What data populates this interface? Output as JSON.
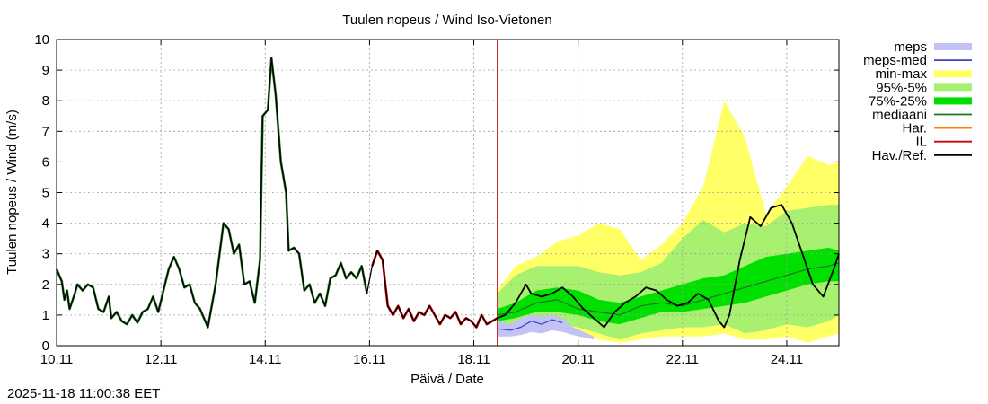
{
  "chart_data": {
    "type": "area",
    "title": "Tuulen nopeus / Wind  Iso-Vietonen",
    "xlabel": "Päivä / Date",
    "ylabel": "Tuulen nopeus / Wind (m/s)",
    "ylim": [
      0,
      10
    ],
    "xlim": [
      0,
      15
    ],
    "x_unit": "days since 10.11 00:00",
    "y_ticks": [
      0,
      1,
      2,
      3,
      4,
      5,
      6,
      7,
      8,
      9,
      10
    ],
    "x_ticks": [
      {
        "x": 0,
        "label": "10.11"
      },
      {
        "x": 2,
        "label": "12.11"
      },
      {
        "x": 4,
        "label": "14.11"
      },
      {
        "x": 6,
        "label": "16.11"
      },
      {
        "x": 8,
        "label": "18.11"
      },
      {
        "x": 10,
        "label": "20.11"
      },
      {
        "x": 12,
        "label": "22.11"
      },
      {
        "x": 14,
        "label": "24.11"
      }
    ],
    "grid": true,
    "now_line_x": 8.45,
    "legend": [
      {
        "key": "meps",
        "label": "meps",
        "style": "band",
        "color": "#c2c2f5"
      },
      {
        "key": "meps_med",
        "label": "meps-med",
        "style": "line",
        "color": "#4040c0"
      },
      {
        "key": "minmax",
        "label": "min-max",
        "style": "band",
        "color": "#ffff66"
      },
      {
        "key": "p95_5",
        "label": "95%-5%",
        "style": "band",
        "color": "#a8f070"
      },
      {
        "key": "p75_25",
        "label": "75%-25%",
        "style": "band",
        "color": "#00e000"
      },
      {
        "key": "median",
        "label": "mediaani",
        "style": "line",
        "color": "#207020"
      },
      {
        "key": "har",
        "label": "Har.",
        "style": "line",
        "color": "#ff8000"
      },
      {
        "key": "il",
        "label": "IL",
        "style": "line",
        "color": "#d00000"
      },
      {
        "key": "obs",
        "label": "Hav./Ref.",
        "style": "line",
        "color": "#000000"
      }
    ],
    "series": {
      "observed": [
        [
          0,
          2.5
        ],
        [
          0.1,
          2.1
        ],
        [
          0.15,
          1.5
        ],
        [
          0.2,
          1.8
        ],
        [
          0.25,
          1.2
        ],
        [
          0.35,
          1.7
        ],
        [
          0.4,
          2.0
        ],
        [
          0.5,
          1.8
        ],
        [
          0.6,
          2.0
        ],
        [
          0.7,
          1.9
        ],
        [
          0.8,
          1.2
        ],
        [
          0.9,
          1.1
        ],
        [
          1.0,
          1.6
        ],
        [
          1.05,
          0.9
        ],
        [
          1.15,
          1.1
        ],
        [
          1.25,
          0.8
        ],
        [
          1.35,
          0.7
        ],
        [
          1.45,
          1.0
        ],
        [
          1.55,
          0.75
        ],
        [
          1.65,
          1.1
        ],
        [
          1.75,
          1.2
        ],
        [
          1.85,
          1.6
        ],
        [
          1.95,
          1.1
        ],
        [
          2.05,
          1.8
        ],
        [
          2.15,
          2.5
        ],
        [
          2.25,
          2.9
        ],
        [
          2.35,
          2.5
        ],
        [
          2.45,
          1.9
        ],
        [
          2.55,
          2.0
        ],
        [
          2.65,
          1.4
        ],
        [
          2.75,
          1.2
        ],
        [
          2.9,
          0.6
        ],
        [
          3.05,
          2.0
        ],
        [
          3.2,
          4.0
        ],
        [
          3.3,
          3.8
        ],
        [
          3.4,
          3.0
        ],
        [
          3.5,
          3.3
        ],
        [
          3.6,
          2.0
        ],
        [
          3.7,
          2.1
        ],
        [
          3.8,
          1.4
        ],
        [
          3.9,
          2.8
        ],
        [
          3.95,
          7.5
        ],
        [
          4.05,
          7.7
        ],
        [
          4.12,
          9.4
        ],
        [
          4.2,
          8.2
        ],
        [
          4.3,
          6.0
        ],
        [
          4.4,
          5.0
        ],
        [
          4.45,
          3.1
        ],
        [
          4.55,
          3.2
        ],
        [
          4.65,
          3.0
        ],
        [
          4.75,
          1.8
        ],
        [
          4.85,
          2.0
        ],
        [
          4.95,
          1.4
        ],
        [
          5.05,
          1.7
        ],
        [
          5.15,
          1.3
        ],
        [
          5.25,
          2.2
        ],
        [
          5.35,
          2.3
        ],
        [
          5.45,
          2.7
        ],
        [
          5.55,
          2.2
        ],
        [
          5.65,
          2.4
        ],
        [
          5.75,
          2.2
        ],
        [
          5.85,
          2.6
        ],
        [
          5.95,
          1.7
        ],
        [
          6.05,
          2.6
        ],
        [
          6.15,
          3.1
        ],
        [
          6.25,
          2.8
        ],
        [
          6.35,
          1.3
        ],
        [
          6.45,
          1.0
        ],
        [
          6.55,
          1.3
        ],
        [
          6.65,
          0.9
        ],
        [
          6.75,
          1.2
        ],
        [
          6.85,
          0.8
        ],
        [
          6.95,
          1.1
        ],
        [
          7.05,
          1.0
        ],
        [
          7.15,
          1.3
        ],
        [
          7.25,
          1.0
        ],
        [
          7.35,
          0.7
        ],
        [
          7.45,
          1.0
        ],
        [
          7.55,
          0.9
        ],
        [
          7.65,
          1.1
        ],
        [
          7.75,
          0.7
        ],
        [
          7.85,
          0.9
        ],
        [
          7.95,
          0.8
        ],
        [
          8.05,
          0.6
        ],
        [
          8.15,
          1.0
        ],
        [
          8.25,
          0.7
        ],
        [
          8.35,
          0.8
        ],
        [
          8.45,
          0.9
        ]
      ],
      "forecast": [
        [
          8.45,
          0.9
        ],
        [
          8.6,
          1.0
        ],
        [
          8.8,
          1.4
        ],
        [
          9.0,
          2.0
        ],
        [
          9.1,
          1.7
        ],
        [
          9.3,
          1.6
        ],
        [
          9.5,
          1.7
        ],
        [
          9.7,
          1.9
        ],
        [
          9.9,
          1.6
        ],
        [
          10.1,
          1.2
        ],
        [
          10.3,
          0.9
        ],
        [
          10.5,
          0.6
        ],
        [
          10.7,
          1.1
        ],
        [
          10.9,
          1.4
        ],
        [
          11.1,
          1.6
        ],
        [
          11.3,
          1.9
        ],
        [
          11.5,
          1.8
        ],
        [
          11.7,
          1.5
        ],
        [
          11.9,
          1.3
        ],
        [
          12.1,
          1.4
        ],
        [
          12.3,
          1.7
        ],
        [
          12.5,
          1.5
        ],
        [
          12.7,
          0.8
        ],
        [
          12.8,
          0.6
        ],
        [
          12.9,
          1.0
        ],
        [
          13.1,
          2.8
        ],
        [
          13.3,
          4.2
        ],
        [
          13.5,
          3.9
        ],
        [
          13.7,
          4.5
        ],
        [
          13.9,
          4.6
        ],
        [
          14.1,
          4.0
        ],
        [
          14.3,
          3.0
        ],
        [
          14.5,
          2.0
        ],
        [
          14.7,
          1.6
        ],
        [
          14.9,
          2.5
        ],
        [
          15.0,
          3.0
        ]
      ],
      "median": [
        [
          8.45,
          1.0
        ],
        [
          8.8,
          1.1
        ],
        [
          9.2,
          1.4
        ],
        [
          9.6,
          1.5
        ],
        [
          10.0,
          1.2
        ],
        [
          10.4,
          1.1
        ],
        [
          10.8,
          1.0
        ],
        [
          11.2,
          1.3
        ],
        [
          11.6,
          1.4
        ],
        [
          12.0,
          1.3
        ],
        [
          12.4,
          1.5
        ],
        [
          12.8,
          1.7
        ],
        [
          13.2,
          1.9
        ],
        [
          13.6,
          2.1
        ],
        [
          14.0,
          2.3
        ],
        [
          14.4,
          2.5
        ],
        [
          14.8,
          2.6
        ],
        [
          15.0,
          2.7
        ]
      ],
      "meps_med": [
        [
          8.45,
          0.55
        ],
        [
          8.7,
          0.5
        ],
        [
          8.9,
          0.6
        ],
        [
          9.1,
          0.8
        ],
        [
          9.3,
          0.7
        ],
        [
          9.5,
          0.85
        ],
        [
          9.7,
          0.75
        ]
      ],
      "band_minmax": {
        "x": [
          8.45,
          8.8,
          9.2,
          9.6,
          10.0,
          10.4,
          10.8,
          11.2,
          11.6,
          12.0,
          12.4,
          12.8,
          13.2,
          13.6,
          14.0,
          14.4,
          14.8,
          15.0
        ],
        "low": [
          0.5,
          0.6,
          0.5,
          0.5,
          0.4,
          0.2,
          0.1,
          0.2,
          0.3,
          0.3,
          0.3,
          0.4,
          0.2,
          0.2,
          0.3,
          0.1,
          0.3,
          0.4
        ],
        "high": [
          1.8,
          2.6,
          2.9,
          3.4,
          3.6,
          4.0,
          3.8,
          2.8,
          3.3,
          4.0,
          5.2,
          8.0,
          6.8,
          4.3,
          5.2,
          6.2,
          5.9,
          6.0
        ]
      },
      "band_95_5": {
        "x": [
          8.45,
          8.8,
          9.2,
          9.6,
          10.0,
          10.4,
          10.8,
          11.2,
          11.6,
          12.0,
          12.4,
          12.8,
          13.2,
          13.6,
          14.0,
          14.4,
          14.8,
          15.0
        ],
        "low": [
          0.6,
          0.7,
          0.7,
          0.7,
          0.6,
          0.4,
          0.2,
          0.4,
          0.5,
          0.6,
          0.6,
          0.7,
          0.4,
          0.5,
          0.7,
          0.6,
          0.8,
          1.0
        ],
        "high": [
          1.7,
          2.3,
          2.6,
          2.6,
          2.6,
          2.4,
          2.3,
          2.4,
          2.7,
          3.5,
          4.1,
          3.7,
          4.0,
          3.9,
          4.4,
          4.5,
          4.6,
          4.6
        ]
      },
      "band_75_25": {
        "x": [
          8.45,
          8.8,
          9.2,
          9.6,
          10.0,
          10.4,
          10.8,
          11.2,
          11.6,
          12.0,
          12.4,
          12.8,
          13.2,
          13.6,
          14.0,
          14.4,
          14.8,
          15.0
        ],
        "low": [
          0.8,
          0.9,
          1.1,
          1.1,
          1.0,
          0.8,
          0.7,
          0.9,
          1.1,
          1.1,
          1.2,
          1.3,
          1.4,
          1.6,
          1.8,
          2.0,
          2.1,
          2.1
        ],
        "high": [
          1.2,
          1.4,
          1.8,
          1.9,
          1.8,
          1.5,
          1.4,
          1.6,
          1.8,
          2.0,
          2.2,
          2.3,
          2.6,
          2.9,
          3.0,
          3.1,
          3.2,
          3.1
        ]
      },
      "band_meps": {
        "x": [
          8.45,
          8.7,
          8.9,
          9.1,
          9.3,
          9.5,
          9.7,
          9.9,
          10.3
        ],
        "low": [
          0.3,
          0.3,
          0.35,
          0.45,
          0.4,
          0.5,
          0.45,
          0.35,
          0.2
        ],
        "high": [
          0.8,
          0.7,
          0.9,
          1.0,
          0.95,
          1.0,
          0.9,
          0.6,
          0.3
        ]
      }
    }
  },
  "footer": {
    "timestamp": "2025-11-18 11:00:38 EET"
  }
}
